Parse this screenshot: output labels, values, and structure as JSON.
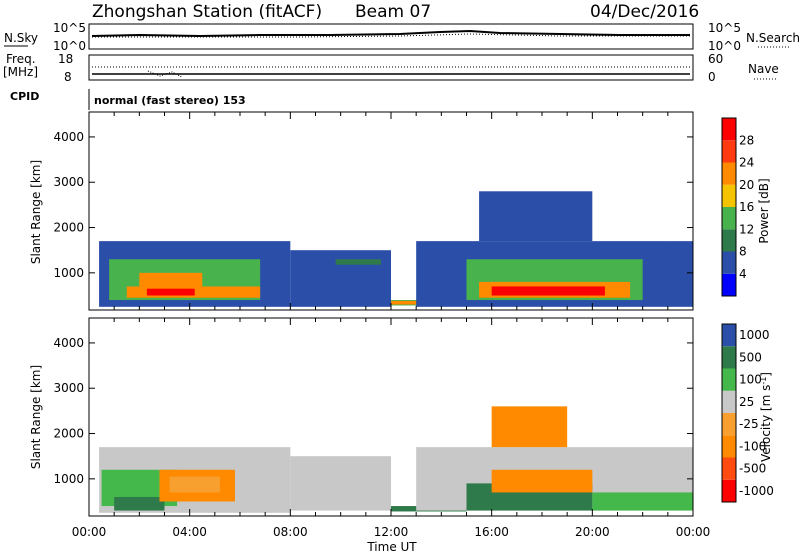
{
  "header": {
    "station": "Zhongshan Station (fitACF)",
    "beam": "Beam 07",
    "date": "04/Dec/2016"
  },
  "panels": {
    "top": {
      "left_label": "N.Sky",
      "right_label": "N.Search",
      "left_ticks": [
        "10^5",
        "10^0"
      ],
      "right_ticks": [
        "10^5",
        "10^0"
      ]
    },
    "freq": {
      "left_label_1": "Freq.",
      "left_label_2": "[MHz]",
      "right_label": "Nave",
      "left_ticks": [
        "18",
        "8"
      ],
      "right_ticks": [
        "60",
        "0"
      ]
    },
    "cpid": {
      "label": "CPID",
      "text": "normal (fast stereo) 153"
    }
  },
  "colors": {
    "power": [
      "#0000ff",
      "#2b4fa8",
      "#2f7a4a",
      "#48b24c",
      "#f5c400",
      "#ff8a00",
      "#ff3a10",
      "#ff0000"
    ],
    "velocity": [
      "#ff0000",
      "#ff4a10",
      "#ff8a00",
      "#f7a030",
      "#c8c8c8",
      "#44b84a",
      "#2f7a4a",
      "#2b4fa8"
    ]
  },
  "chart_data": [
    {
      "type": "heatmap",
      "title": "Power",
      "xlabel": "Time UT",
      "ylabel": "Slant Range [km]",
      "x_ticks": [
        "00:00",
        "04:00",
        "08:00",
        "12:00",
        "16:00",
        "20:00",
        "00:00"
      ],
      "y_ticks": [
        "1000",
        "2000",
        "3000",
        "4000"
      ],
      "ylim": [
        180,
        4550
      ],
      "colorbar_label": "Power [dB]",
      "colorbar_ticks": [
        "4",
        "8",
        "12",
        "16",
        "20",
        "24",
        "28"
      ],
      "regions": [
        {
          "t0": 0.4,
          "t1": 8.0,
          "r0": 250,
          "r1": 1700,
          "lvl": 1
        },
        {
          "t0": 0.8,
          "t1": 6.8,
          "r0": 400,
          "r1": 1300,
          "lvl": 3
        },
        {
          "t0": 1.5,
          "t1": 6.8,
          "r0": 450,
          "r1": 700,
          "lvl": 5
        },
        {
          "t0": 2.0,
          "t1": 4.5,
          "r0": 600,
          "r1": 1000,
          "lvl": 5
        },
        {
          "t0": 2.3,
          "t1": 4.2,
          "r0": 500,
          "r1": 650,
          "lvl": 7
        },
        {
          "t0": 8.0,
          "t1": 12.0,
          "r0": 250,
          "r1": 1500,
          "lvl": 1
        },
        {
          "t0": 9.8,
          "t1": 11.6,
          "r0": 1180,
          "r1": 1300,
          "lvl": 2
        },
        {
          "t0": 12.0,
          "t1": 15.0,
          "r0": 280,
          "r1": 400,
          "lvl": 3
        },
        {
          "t0": 12.0,
          "t1": 15.0,
          "r0": 300,
          "r1": 380,
          "lvl": 5
        },
        {
          "t0": 13.0,
          "t1": 24.0,
          "r0": 250,
          "r1": 1700,
          "lvl": 1
        },
        {
          "t0": 15.0,
          "t1": 22.0,
          "r0": 400,
          "r1": 1300,
          "lvl": 3
        },
        {
          "t0": 15.5,
          "t1": 21.5,
          "r0": 450,
          "r1": 800,
          "lvl": 5
        },
        {
          "t0": 16.0,
          "t1": 20.5,
          "r0": 500,
          "r1": 700,
          "lvl": 7
        },
        {
          "t0": 15.5,
          "t1": 20.0,
          "r0": 1700,
          "r1": 2800,
          "lvl": 1
        },
        {
          "t0": 23.0,
          "t1": 24.0,
          "r0": 1450,
          "r1": 1650,
          "lvl": 1
        }
      ]
    },
    {
      "type": "heatmap",
      "title": "Velocity",
      "xlabel": "Time UT",
      "ylabel": "Slant Range [km]",
      "x_ticks": [
        "00:00",
        "04:00",
        "08:00",
        "12:00",
        "16:00",
        "20:00",
        "00:00"
      ],
      "y_ticks": [
        "1000",
        "2000",
        "3000",
        "4000"
      ],
      "ylim": [
        180,
        4550
      ],
      "colorbar_label": "Velocity [m s",
      "colorbar_label_sup": "-1",
      "colorbar_label_end": "]",
      "colorbar_ticks": [
        "1000",
        "500",
        "100",
        "25",
        "-25",
        "-100",
        "-500",
        "-1000"
      ],
      "regions": [
        {
          "t0": 0.4,
          "t1": 8.0,
          "r0": 250,
          "r1": 1700,
          "lvl": 4
        },
        {
          "t0": 0.5,
          "t1": 3.5,
          "r0": 400,
          "r1": 1200,
          "lvl": 5
        },
        {
          "t0": 1.0,
          "t1": 3.0,
          "r0": 300,
          "r1": 600,
          "lvl": 6
        },
        {
          "t0": 2.8,
          "t1": 5.8,
          "r0": 500,
          "r1": 1200,
          "lvl": 2
        },
        {
          "t0": 3.2,
          "t1": 5.2,
          "r0": 700,
          "r1": 1050,
          "lvl": 3
        },
        {
          "t0": 6.0,
          "t1": 7.0,
          "r0": 400,
          "r1": 800,
          "lvl": 4
        },
        {
          "t0": 8.0,
          "t1": 12.0,
          "r0": 300,
          "r1": 1500,
          "lvl": 4
        },
        {
          "t0": 12.0,
          "t1": 15.0,
          "r0": 280,
          "r1": 400,
          "lvl": 6
        },
        {
          "t0": 13.0,
          "t1": 24.0,
          "r0": 300,
          "r1": 1700,
          "lvl": 4
        },
        {
          "t0": 15.0,
          "t1": 20.0,
          "r0": 300,
          "r1": 900,
          "lvl": 6
        },
        {
          "t0": 16.0,
          "t1": 20.0,
          "r0": 700,
          "r1": 1200,
          "lvl": 2
        },
        {
          "t0": 16.0,
          "t1": 19.0,
          "r0": 1700,
          "r1": 2600,
          "lvl": 2
        },
        {
          "t0": 20.0,
          "t1": 24.0,
          "r0": 300,
          "r1": 700,
          "lvl": 5
        },
        {
          "t0": 23.0,
          "t1": 24.0,
          "r0": 1450,
          "r1": 1650,
          "lvl": 4
        }
      ]
    }
  ]
}
